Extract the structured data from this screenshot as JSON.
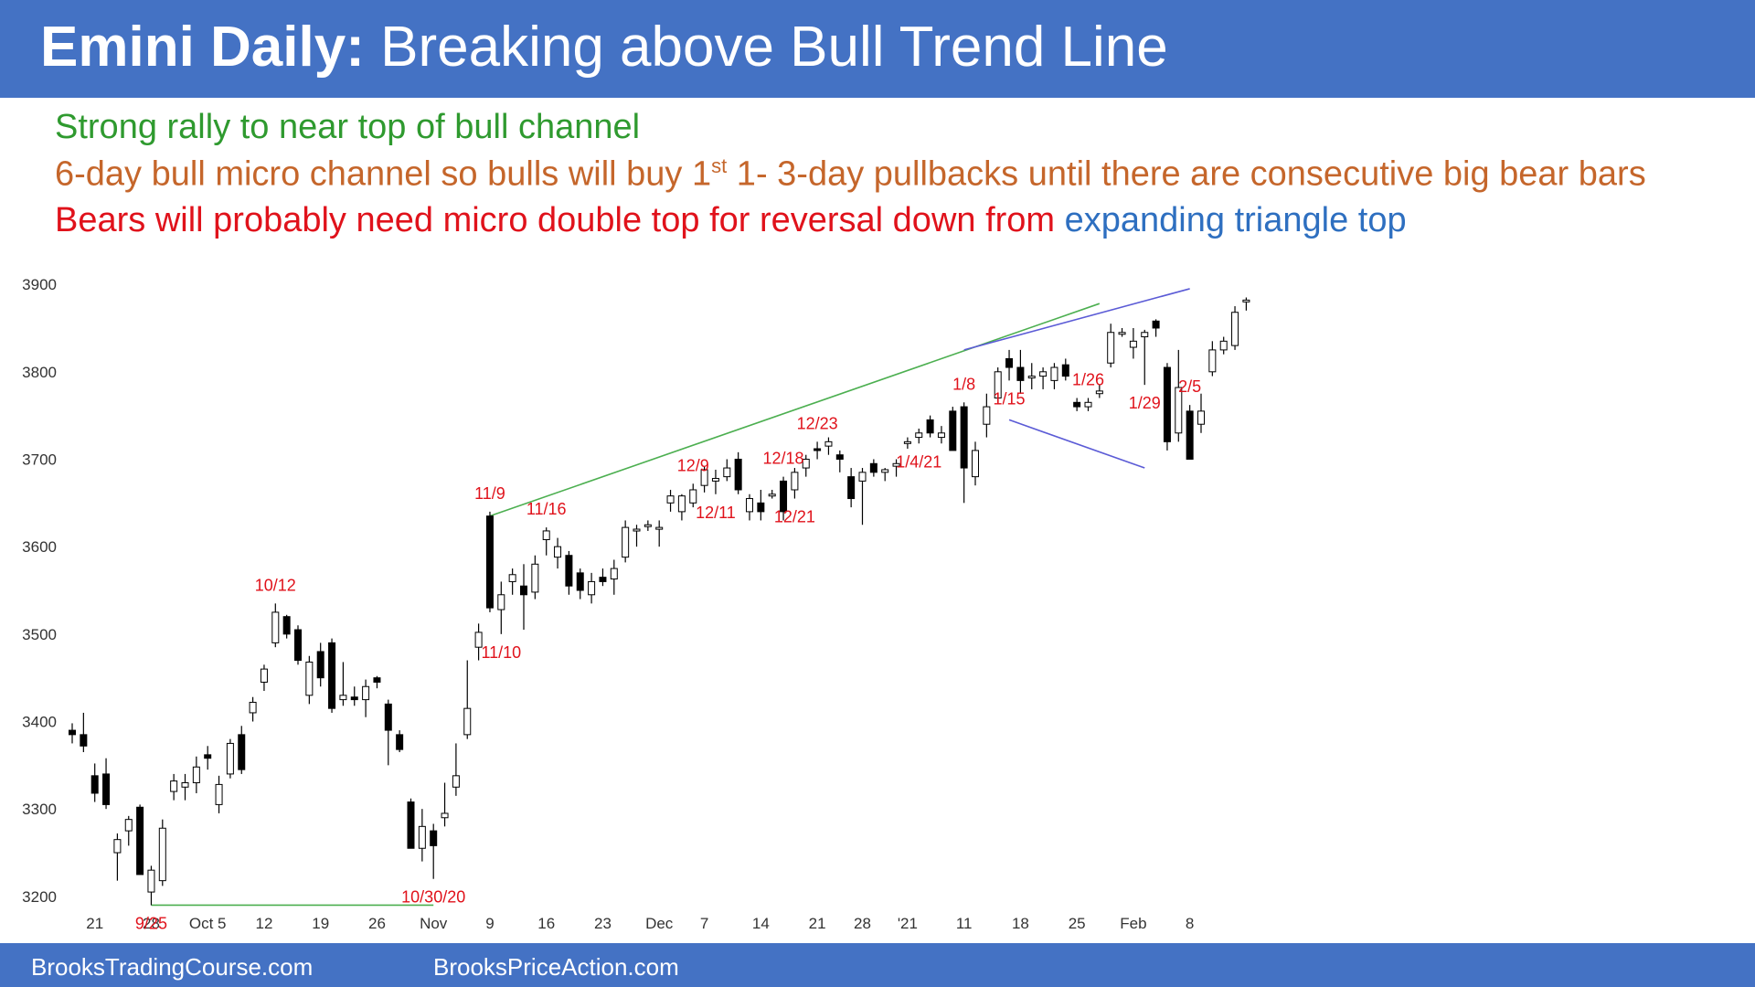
{
  "header": {
    "title_bold": "Emini Daily:",
    "title_rest": " Breaking above Bull Trend Line"
  },
  "notes": {
    "line1": "Strong rally to near top of bull channel",
    "line2_pre": "6-day bull micro channel so bulls will buy 1",
    "line2_sup": "st",
    "line2_post": " 1- 3-day pullbacks until there are consecutive big bear bars",
    "line3_red": "Bears will probably need micro double top for reversal down from ",
    "line3_blue": "expanding triangle top"
  },
  "footer": {
    "left": "BrooksTradingCourse.com",
    "right": "BrooksPriceAction.com"
  },
  "colors": {
    "header_bg": "#4472c4",
    "green_text": "#2f9a2f",
    "orange_text": "#c5662b",
    "red_text": "#e0121b",
    "blue_text": "#2e6fc0",
    "annotation_red": "#e0121b",
    "green_line": "#4caf50",
    "blue_line": "#5b5bd6"
  },
  "chart_data": {
    "type": "candlestick",
    "title": "Emini Daily",
    "ylim": [
      3180,
      3920
    ],
    "yticks": [
      3200,
      3300,
      3400,
      3500,
      3600,
      3700,
      3800,
      3900
    ],
    "xlabels": [
      {
        "i": 2,
        "label": "21"
      },
      {
        "i": 7,
        "label": "28"
      },
      {
        "i": 12,
        "label": "Oct 5"
      },
      {
        "i": 17,
        "label": "12"
      },
      {
        "i": 22,
        "label": "19"
      },
      {
        "i": 27,
        "label": "26"
      },
      {
        "i": 32,
        "label": "Nov"
      },
      {
        "i": 37,
        "label": "9"
      },
      {
        "i": 42,
        "label": "16"
      },
      {
        "i": 47,
        "label": "23"
      },
      {
        "i": 52,
        "label": "Dec"
      },
      {
        "i": 56,
        "label": "7"
      },
      {
        "i": 61,
        "label": "14"
      },
      {
        "i": 66,
        "label": "21"
      },
      {
        "i": 70,
        "label": "28"
      },
      {
        "i": 74,
        "label": "'21"
      },
      {
        "i": 79,
        "label": "11"
      },
      {
        "i": 84,
        "label": "18"
      },
      {
        "i": 89,
        "label": "25"
      },
      {
        "i": 94,
        "label": "Feb"
      },
      {
        "i": 99,
        "label": "8"
      }
    ],
    "candles": [
      [
        3390,
        3398,
        3375,
        3385
      ],
      [
        3385,
        3410,
        3365,
        3372
      ],
      [
        3338,
        3352,
        3308,
        3318
      ],
      [
        3340,
        3358,
        3300,
        3305
      ],
      [
        3250,
        3272,
        3218,
        3265
      ],
      [
        3275,
        3292,
        3258,
        3288
      ],
      [
        3302,
        3305,
        3228,
        3225
      ],
      [
        3205,
        3235,
        3190,
        3230
      ],
      [
        3218,
        3288,
        3212,
        3278
      ],
      [
        3320,
        3340,
        3310,
        3332
      ],
      [
        3325,
        3340,
        3310,
        3330
      ],
      [
        3330,
        3360,
        3318,
        3348
      ],
      [
        3362,
        3372,
        3345,
        3358
      ],
      [
        3305,
        3338,
        3295,
        3328
      ],
      [
        3340,
        3380,
        3335,
        3375
      ],
      [
        3385,
        3395,
        3340,
        3345
      ],
      [
        3410,
        3428,
        3400,
        3422
      ],
      [
        3445,
        3465,
        3435,
        3460
      ],
      [
        3490,
        3535,
        3485,
        3525
      ],
      [
        3520,
        3522,
        3495,
        3500
      ],
      [
        3505,
        3510,
        3465,
        3470
      ],
      [
        3430,
        3475,
        3420,
        3468
      ],
      [
        3480,
        3490,
        3440,
        3450
      ],
      [
        3490,
        3495,
        3410,
        3415
      ],
      [
        3425,
        3468,
        3418,
        3430
      ],
      [
        3428,
        3440,
        3418,
        3425
      ],
      [
        3425,
        3448,
        3405,
        3440
      ],
      [
        3450,
        3452,
        3438,
        3445
      ],
      [
        3420,
        3425,
        3350,
        3390
      ],
      [
        3385,
        3390,
        3365,
        3368
      ],
      [
        3308,
        3312,
        3255,
        3255
      ],
      [
        3255,
        3300,
        3240,
        3280
      ],
      [
        3275,
        3283,
        3220,
        3258
      ],
      [
        3290,
        3330,
        3280,
        3295
      ],
      [
        3325,
        3375,
        3315,
        3338
      ],
      [
        3385,
        3470,
        3380,
        3415
      ],
      [
        3485,
        3512,
        3470,
        3502
      ],
      [
        3635,
        3640,
        3525,
        3530
      ],
      [
        3528,
        3560,
        3500,
        3545
      ],
      [
        3560,
        3575,
        3545,
        3568
      ],
      [
        3555,
        3580,
        3505,
        3545
      ],
      [
        3548,
        3590,
        3540,
        3580
      ],
      [
        3608,
        3622,
        3590,
        3618
      ],
      [
        3588,
        3610,
        3575,
        3600
      ],
      [
        3590,
        3595,
        3545,
        3555
      ],
      [
        3570,
        3575,
        3540,
        3550
      ],
      [
        3545,
        3570,
        3535,
        3560
      ],
      [
        3565,
        3575,
        3555,
        3560
      ],
      [
        3563,
        3585,
        3545,
        3575
      ],
      [
        3588,
        3630,
        3582,
        3622
      ],
      [
        3618,
        3625,
        3600,
        3620
      ],
      [
        3625,
        3630,
        3618,
        3625
      ],
      [
        3622,
        3630,
        3600,
        3622
      ],
      [
        3650,
        3665,
        3640,
        3658
      ],
      [
        3640,
        3660,
        3630,
        3658
      ],
      [
        3650,
        3672,
        3645,
        3665
      ],
      [
        3670,
        3692,
        3662,
        3688
      ],
      [
        3675,
        3688,
        3660,
        3678
      ],
      [
        3680,
        3700,
        3675,
        3690
      ],
      [
        3700,
        3708,
        3660,
        3665
      ],
      [
        3640,
        3660,
        3630,
        3655
      ],
      [
        3650,
        3665,
        3630,
        3640
      ],
      [
        3660,
        3665,
        3655,
        3660
      ],
      [
        3675,
        3680,
        3630,
        3640
      ],
      [
        3665,
        3690,
        3655,
        3685
      ],
      [
        3690,
        3705,
        3680,
        3700
      ],
      [
        3712,
        3720,
        3700,
        3710
      ],
      [
        3715,
        3725,
        3705,
        3720
      ],
      [
        3705,
        3710,
        3685,
        3700
      ],
      [
        3680,
        3690,
        3645,
        3655
      ],
      [
        3675,
        3690,
        3625,
        3685
      ],
      [
        3695,
        3700,
        3680,
        3685
      ],
      [
        3685,
        3690,
        3675,
        3688
      ],
      [
        3692,
        3700,
        3680,
        3695
      ],
      [
        3720,
        3725,
        3712,
        3720
      ],
      [
        3725,
        3735,
        3718,
        3730
      ],
      [
        3745,
        3750,
        3725,
        3730
      ],
      [
        3725,
        3738,
        3718,
        3730
      ],
      [
        3755,
        3760,
        3710,
        3710
      ],
      [
        3760,
        3765,
        3650,
        3690
      ],
      [
        3680,
        3720,
        3670,
        3710
      ],
      [
        3740,
        3775,
        3725,
        3760
      ],
      [
        3770,
        3805,
        3765,
        3800
      ],
      [
        3815,
        3825,
        3790,
        3805
      ],
      [
        3805,
        3825,
        3775,
        3790
      ],
      [
        3795,
        3810,
        3780,
        3795
      ],
      [
        3795,
        3805,
        3780,
        3800
      ],
      [
        3790,
        3810,
        3780,
        3805
      ],
      [
        3808,
        3815,
        3790,
        3795
      ],
      [
        3765,
        3770,
        3755,
        3760
      ],
      [
        3760,
        3770,
        3755,
        3765
      ],
      [
        3775,
        3785,
        3770,
        3778
      ],
      [
        3810,
        3855,
        3805,
        3845
      ],
      [
        3845,
        3850,
        3840,
        3845
      ],
      [
        3828,
        3850,
        3815,
        3835
      ],
      [
        3840,
        3848,
        3785,
        3845
      ],
      [
        3858,
        3860,
        3840,
        3850
      ],
      [
        3805,
        3810,
        3710,
        3720
      ],
      [
        3730,
        3825,
        3720,
        3782
      ],
      [
        3755,
        3762,
        3700,
        3700
      ],
      [
        3740,
        3775,
        3730,
        3755
      ],
      [
        3800,
        3835,
        3795,
        3825
      ],
      [
        3825,
        3840,
        3820,
        3835
      ],
      [
        3830,
        3875,
        3825,
        3868
      ],
      [
        3880,
        3885,
        3870,
        3882
      ]
    ],
    "annotations": [
      {
        "label": "9/25",
        "i": 7,
        "pos": "below"
      },
      {
        "label": "10/12",
        "i": 18,
        "pos": "above"
      },
      {
        "label": "10/30/20",
        "i": 32,
        "pos": "below"
      },
      {
        "label": "11/9",
        "i": 37,
        "pos": "above"
      },
      {
        "label": "11/10",
        "i": 38,
        "pos": "below"
      },
      {
        "label": "11/16",
        "i": 42,
        "pos": "above"
      },
      {
        "label": "12/9",
        "i": 55,
        "pos": "above"
      },
      {
        "label": "12/11",
        "i": 57,
        "pos": "below"
      },
      {
        "label": "12/18",
        "i": 63,
        "pos": "above"
      },
      {
        "label": "12/21",
        "i": 64,
        "pos": "below"
      },
      {
        "label": "12/23",
        "i": 66,
        "pos": "above"
      },
      {
        "label": "1/4/21",
        "i": 75,
        "pos": "below"
      },
      {
        "label": "1/8",
        "i": 79,
        "pos": "above"
      },
      {
        "label": "1/15",
        "i": 83,
        "pos": "below"
      },
      {
        "label": "1/26",
        "i": 90,
        "pos": "above"
      },
      {
        "label": "1/29",
        "i": 95,
        "pos": "below"
      },
      {
        "label": "2/5",
        "i": 99,
        "pos": "above"
      }
    ],
    "lines": [
      {
        "name": "bull-trend-line",
        "color": "green",
        "from": [
          37,
          3635
        ],
        "to": [
          91,
          3878
        ]
      },
      {
        "name": "double-bottom-line",
        "color": "green",
        "from": [
          7,
          3190
        ],
        "to": [
          32,
          3190
        ]
      },
      {
        "name": "triangle-top-line",
        "color": "blue",
        "from": [
          79,
          3825
        ],
        "to": [
          99,
          3895
        ]
      },
      {
        "name": "triangle-bottom-line",
        "color": "blue",
        "from": [
          83,
          3745
        ],
        "to": [
          95,
          3690
        ]
      }
    ]
  }
}
